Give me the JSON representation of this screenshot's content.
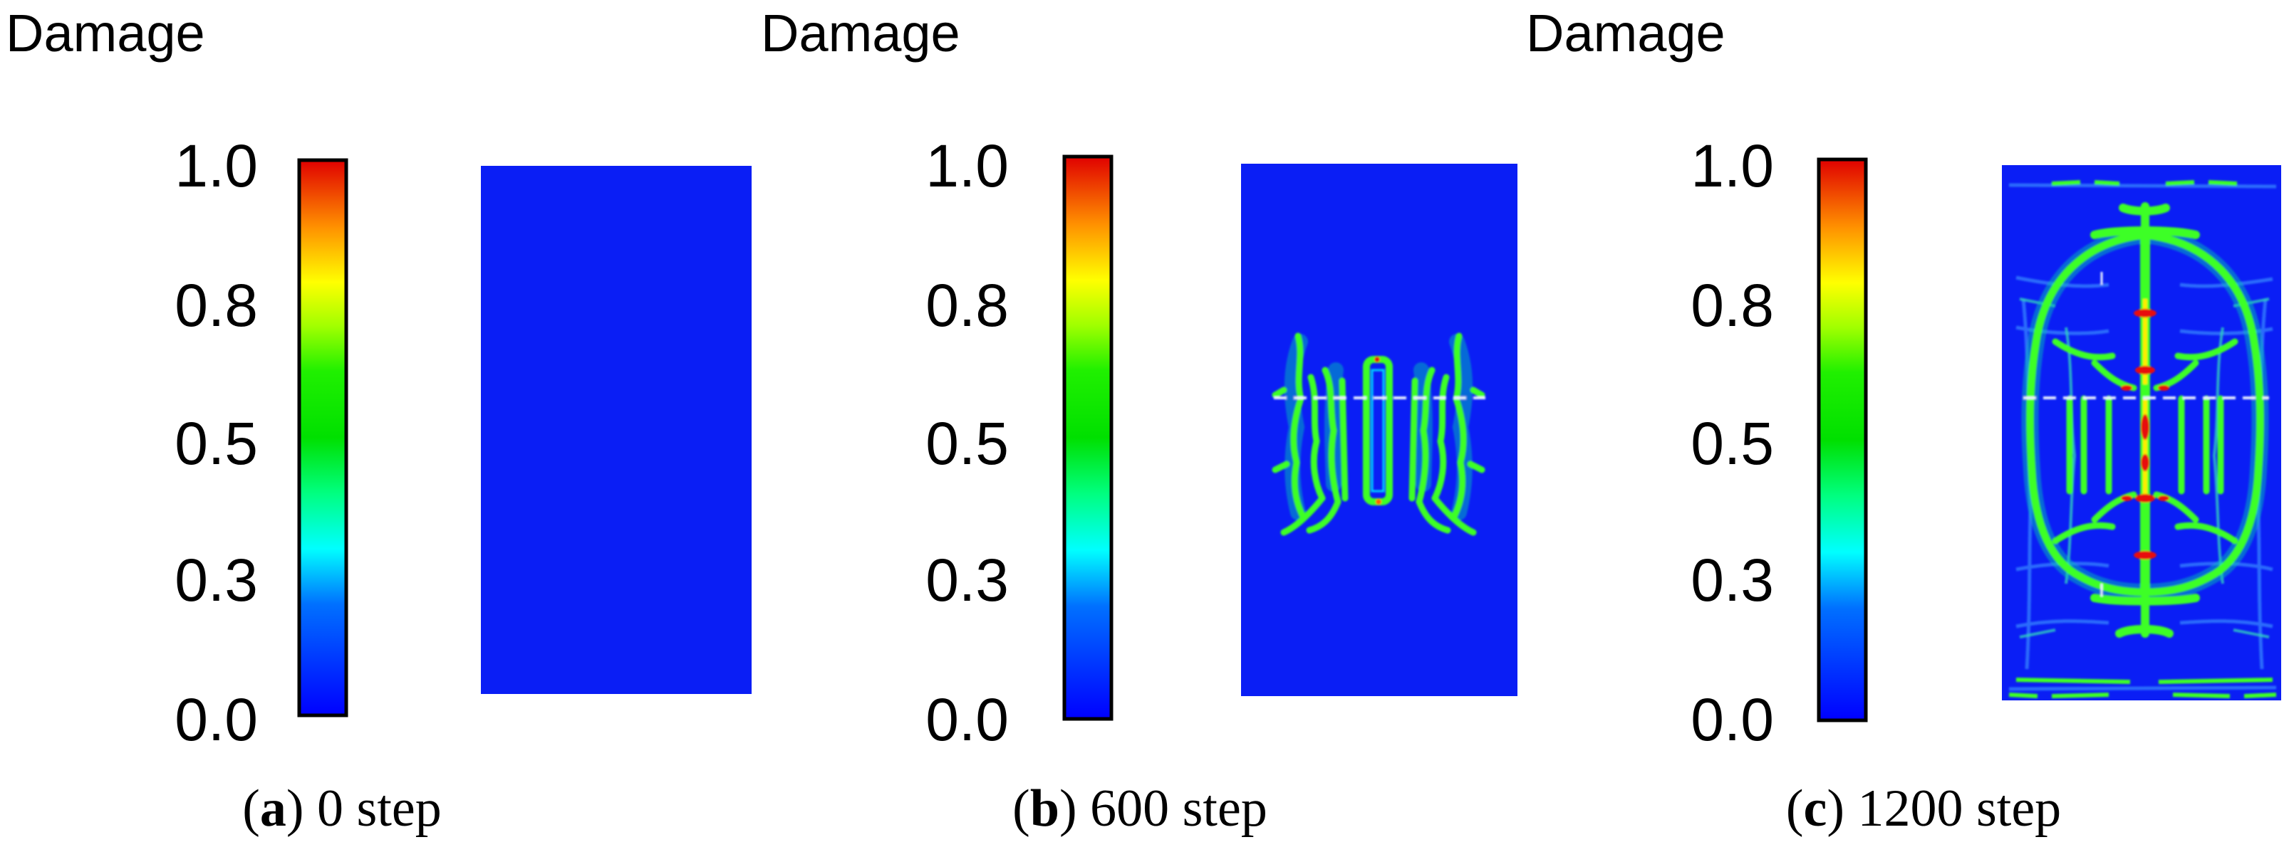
{
  "panels": [
    {
      "title": "Damage",
      "ticks": [
        "1.0",
        "0.8",
        "0.5",
        "0.3",
        "0.0"
      ],
      "caption_letter": "a",
      "caption_text": ") 0 step",
      "step": 0
    },
    {
      "title": "Damage",
      "ticks": [
        "1.0",
        "0.8",
        "0.5",
        "0.3",
        "0.0"
      ],
      "caption_letter": "b",
      "caption_text": ") 600 step",
      "step": 600
    },
    {
      "title": "Damage",
      "ticks": [
        "1.0",
        "0.8",
        "0.5",
        "0.3",
        "0.0"
      ],
      "caption_letter": "c",
      "caption_text": ") 1200 step",
      "step": 1200
    }
  ],
  "colors": {
    "specimen_background": "#0a1ef5",
    "colorbar": [
      "#0000ff",
      "#00a0ff",
      "#00ffff",
      "#00ff40",
      "#00e000",
      "#60ff00",
      "#ffff00",
      "#ffa000",
      "#ff3000",
      "#e00000"
    ],
    "damage_low": "#00f0a0",
    "damage_mid": "#3cff28",
    "damage_high": "#e81010",
    "crack_line": "#e8f0ff"
  }
}
